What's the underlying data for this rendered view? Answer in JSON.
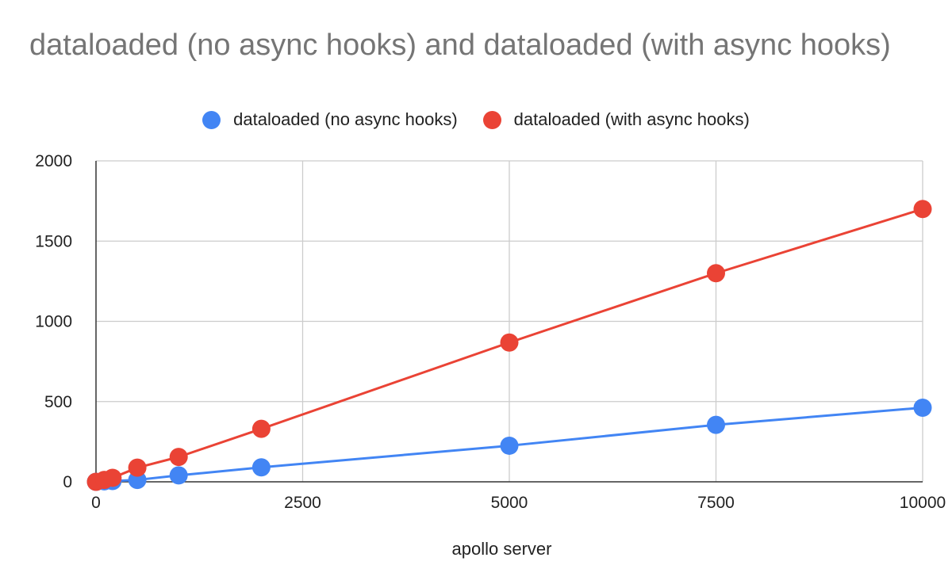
{
  "chart_data": {
    "type": "line",
    "title": "dataloaded (no async hooks) and dataloaded (with async hooks)",
    "xlabel": "apollo server",
    "ylabel": "",
    "x": [
      0,
      100,
      200,
      500,
      1000,
      2000,
      5000,
      7500,
      10000
    ],
    "xlim": [
      0,
      10000
    ],
    "ylim": [
      0,
      2000
    ],
    "xticks": [
      "0",
      "2500",
      "5000",
      "7500",
      "10000"
    ],
    "yticks": [
      "0",
      "500",
      "1000",
      "1500",
      "2000"
    ],
    "grid": true,
    "legend_position": "top",
    "series": [
      {
        "name": "dataloaded (no async hooks)",
        "color": "#4285f4",
        "values": [
          0,
          3,
          5,
          12,
          40,
          90,
          225,
          355,
          462
        ]
      },
      {
        "name": "dataloaded (with async hooks)",
        "color": "#ea4335",
        "values": [
          0,
          12,
          25,
          88,
          155,
          330,
          868,
          1300,
          1700
        ]
      }
    ]
  }
}
